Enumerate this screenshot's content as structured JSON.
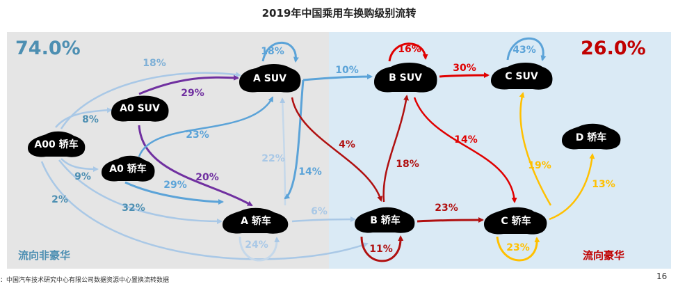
{
  "title": "2019年中国乘用车换购级别流转",
  "share_non_luxury": "74.0%",
  "share_luxury": "26.0%",
  "label_non_luxury": "流向非豪华",
  "label_luxury": "流向豪华",
  "footer": "：中国汽车技术研究中心有限公司数据资源中心置换流转数据",
  "page_number": "16",
  "nodes": {
    "a00": "A00 轿车",
    "a0suv": "A0 SUV",
    "a0": "A0 轿车",
    "asuv": "A SUV",
    "a": "A 轿车",
    "bsuv": "B SUV",
    "b": "B 轿车",
    "csuv": "C SUV",
    "c": "C 轿车",
    "d": "D 轿车"
  },
  "flows": {
    "a00_to_asuv": "18%",
    "a00_to_a0suv": "8%",
    "a00_to_a0": "9%",
    "a00_to_a": "32%",
    "a00_to_b": "2%",
    "a0suv_to_asuv": "29%",
    "a0suv_to_a": "20%",
    "a0_to_asuv": "23%",
    "a0_to_a": "29%",
    "asuv_self": "18%",
    "a_to_asuv": "22%",
    "asuv_to_a": "14%",
    "a_self": "24%",
    "asuv_to_bsuv": "10%",
    "asuv_to_b": "4%",
    "a_to_b": "6%",
    "bsuv_self": "16%",
    "bsuv_to_csuv": "30%",
    "bsuv_to_c": "14%",
    "b_to_bsuv": "18%",
    "b_self": "11%",
    "b_to_c": "23%",
    "csuv_self": "43%",
    "c_to_csuv": "19%",
    "c_to_d": "13%",
    "c_self": "23%"
  },
  "colors": {
    "blue": "#4d8fb2",
    "light_blue": "#a9c8e6",
    "mid_blue": "#5ba3d8",
    "purple": "#7030a0",
    "red": "#e00000",
    "dark_red": "#b01010",
    "yellow": "#ffc000"
  }
}
